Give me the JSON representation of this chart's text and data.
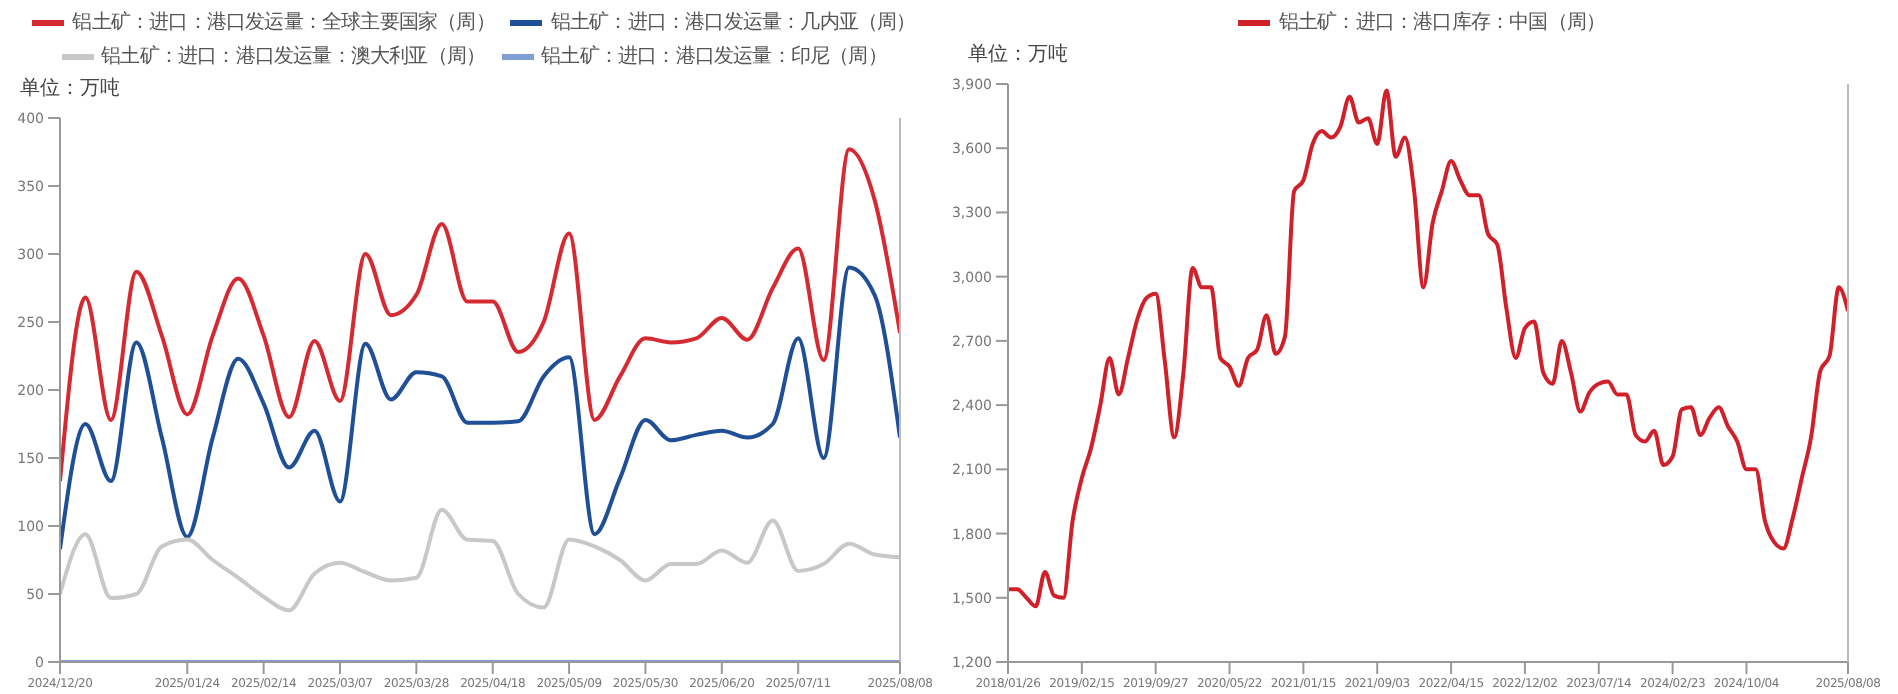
{
  "chart_data": [
    {
      "type": "line",
      "annotations": [
        "单位：万吨"
      ],
      "legend": "top",
      "marker": "none",
      "line_style": "solid",
      "categories": [
        "2024/12/20",
        null,
        null,
        null,
        null,
        "2025/01/24",
        null,
        null,
        "2025/02/14",
        null,
        null,
        "2025/03/07",
        null,
        null,
        "2025/03/28",
        null,
        null,
        "2025/04/18",
        null,
        null,
        "2025/05/09",
        null,
        null,
        "2025/05/30",
        null,
        null,
        "2025/06/20",
        null,
        null,
        "2025/07/11",
        null,
        null,
        null,
        "2025/08/08"
      ],
      "ylim": [
        0,
        400
      ],
      "yticks": [
        0,
        50,
        100,
        150,
        200,
        250,
        300,
        350,
        400
      ],
      "series": [
        {
          "name": "铝土矿：进口：港口发运量：全球主要国家（周）",
          "color": "#d62a32",
          "values": [
            133,
            268,
            178,
            287,
            240,
            182,
            240,
            282,
            240,
            180,
            236,
            192,
            300,
            255,
            270,
            322,
            265,
            265,
            228,
            250,
            315,
            178,
            210,
            238,
            235,
            238,
            253,
            237,
            275,
            304,
            222,
            377,
            340,
            242
          ]
        },
        {
          "name": "铝土矿：进口：港口发运量：几内亚（周）",
          "color": "#1f4f96",
          "values": [
            83,
            175,
            133,
            235,
            165,
            92,
            165,
            223,
            190,
            143,
            170,
            118,
            234,
            193,
            213,
            210,
            176,
            176,
            177,
            210,
            224,
            94,
            135,
            178,
            163,
            167,
            170,
            165,
            175,
            238,
            150,
            290,
            270,
            165
          ]
        },
        {
          "name": "铝土矿：进口：港口发运量：澳大利亚（周）",
          "color": "#c8c8c8",
          "values": [
            50,
            94,
            47,
            50,
            85,
            90,
            75,
            62,
            48,
            38,
            65,
            73,
            66,
            60,
            62,
            112,
            90,
            89,
            50,
            40,
            90,
            85,
            75,
            60,
            72,
            72,
            82,
            73,
            104,
            67,
            72,
            87,
            79,
            77
          ]
        },
        {
          "name": "铝土矿：进口：港口发运量：印尼（周）",
          "color": "#7f9fd6",
          "values": [
            0,
            0,
            0,
            0,
            0,
            0,
            0,
            0,
            0,
            0,
            0,
            0,
            0,
            0,
            0,
            0,
            0,
            0,
            0,
            0,
            0,
            0,
            0,
            0,
            0,
            0,
            0,
            0,
            0,
            0,
            0,
            0,
            0,
            0
          ]
        }
      ]
    },
    {
      "type": "line",
      "annotations": [
        "单位：万吨"
      ],
      "legend": "top",
      "marker": "none",
      "line_style": "solid",
      "categories": [
        "2018/01/26",
        null,
        null,
        null,
        null,
        null,
        null,
        null,
        "2019/02/15",
        null,
        null,
        null,
        null,
        null,
        null,
        null,
        "2019/09/27",
        null,
        null,
        null,
        null,
        null,
        null,
        null,
        "2020/05/22",
        null,
        null,
        null,
        null,
        null,
        null,
        null,
        "2021/01/15",
        null,
        null,
        null,
        null,
        null,
        null,
        null,
        "2021/09/03",
        null,
        null,
        null,
        null,
        null,
        null,
        null,
        "2022/04/15",
        null,
        null,
        null,
        null,
        null,
        null,
        null,
        "2022/12/02",
        null,
        null,
        null,
        null,
        null,
        null,
        null,
        "2023/07/14",
        null,
        null,
        null,
        null,
        null,
        null,
        null,
        "2024/02/23",
        null,
        null,
        null,
        null,
        null,
        null,
        null,
        "2024/10/04",
        null,
        null,
        null,
        null,
        null,
        null,
        null,
        null,
        null,
        null,
        "2025/08/08"
      ],
      "ylim": [
        1200,
        3900
      ],
      "yticks": [
        {
          "value": 1200,
          "label": "1,200"
        },
        {
          "value": 1500,
          "label": "1,500"
        },
        {
          "value": 1800,
          "label": "1,800"
        },
        {
          "value": 2100,
          "label": "2,100"
        },
        {
          "value": 2400,
          "label": "2,400"
        },
        {
          "value": 2700,
          "label": "2,700"
        },
        {
          "value": 3000,
          "label": "3,000"
        },
        {
          "value": 3300,
          "label": "3,300"
        },
        {
          "value": 3600,
          "label": "3,600"
        },
        {
          "value": 3900,
          "label": "3,900"
        }
      ],
      "series": [
        {
          "name": "铝土矿：进口：港口库存：中国（周）",
          "color": "#d0202a",
          "values": [
            1540,
            1540,
            1500,
            1460,
            1620,
            1510,
            1500,
            1860,
            2060,
            2200,
            2400,
            2620,
            2450,
            2620,
            2800,
            2900,
            2920,
            2600,
            2250,
            2550,
            3040,
            2950,
            2950,
            2620,
            2580,
            2490,
            2620,
            2660,
            2820,
            2640,
            2720,
            3400,
            3450,
            3620,
            3680,
            3650,
            3700,
            3840,
            3720,
            3740,
            3620,
            3870,
            3560,
            3650,
            3400,
            2950,
            3250,
            3400,
            3540,
            3450,
            3380,
            3380,
            3200,
            3150,
            2850,
            2620,
            2760,
            2790,
            2550,
            2500,
            2700,
            2550,
            2370,
            2460,
            2500,
            2510,
            2450,
            2450,
            2260,
            2230,
            2280,
            2120,
            2160,
            2380,
            2390,
            2260,
            2340,
            2390,
            2300,
            2230,
            2100,
            2100,
            1860,
            1760,
            1730,
            1870,
            2060,
            2250,
            2560,
            2630,
            2950,
            2840
          ]
        }
      ]
    }
  ]
}
